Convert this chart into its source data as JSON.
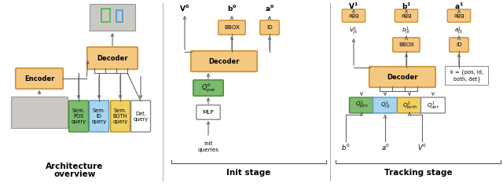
{
  "fig_width": 6.4,
  "fig_height": 2.42,
  "dpi": 100,
  "bg_color": "#ffffff",
  "oc": "#f5c882",
  "oe": "#c8963a",
  "gc": "#7dbb6e",
  "ge": "#4a8c3a",
  "bc": "#a8d4f0",
  "be": "#5599cc",
  "yc": "#f0d060",
  "ye": "#b89020",
  "wc": "#ffffff",
  "we": "#888888",
  "ac": "#666666",
  "div_color": "#aaaaaa",
  "lfs": 6.0,
  "sfs": 5.2,
  "tfs": 7.5,
  "section_titles": [
    "Architecture\noverview",
    "Init stage",
    "Tracking stage"
  ]
}
